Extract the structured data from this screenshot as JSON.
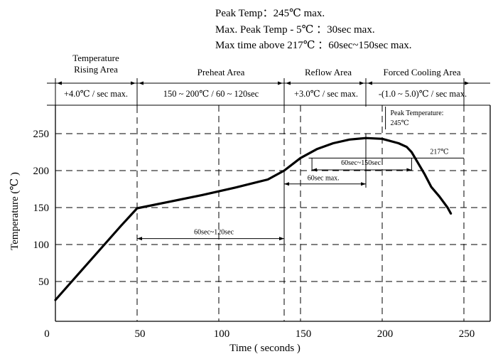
{
  "header": {
    "lines": [
      "Peak Temp：245℃ max.",
      "Max. Peak Temp - 5℃ ：30sec max.",
      "Max time above 217℃ ：60sec~150sec max."
    ]
  },
  "zones": {
    "names": [
      [
        "Temperature",
        "Rising Area"
      ],
      [
        "Preheat Area"
      ],
      [
        "Reflow Area"
      ],
      [
        "Forced Cooling Area"
      ]
    ],
    "rates": [
      "+4.0℃ / sec max.",
      "150 ~ 200℃ / 60 ~ 120sec",
      "+3.0℃ / sec max.",
      "-(1.0 ~ 5.0)℃ / sec max."
    ],
    "boundaries_x": [
      0,
      50,
      140,
      190,
      250
    ]
  },
  "chart_data": {
    "type": "line",
    "xlabel": "Time ( seconds )",
    "ylabel": "Temperature (℃ )",
    "xlim": [
      0,
      250
    ],
    "ylim": [
      0,
      280
    ],
    "x_ticks": [
      0,
      50,
      100,
      150,
      200,
      250
    ],
    "y_ticks": [
      50,
      100,
      150,
      200,
      250
    ],
    "grid": "dashed",
    "series": [
      {
        "x": [
          0,
          10,
          20,
          30,
          40,
          50,
          70,
          90,
          110,
          130,
          140,
          150,
          160,
          170,
          180,
          190,
          200,
          210,
          215,
          218,
          222,
          226,
          230,
          235,
          240,
          242
        ],
        "y": [
          25,
          50,
          75,
          100,
          125,
          149,
          158,
          167,
          177,
          188,
          200,
          217,
          229,
          237,
          242,
          244,
          243,
          237,
          232,
          225,
          210,
          195,
          178,
          165,
          150,
          142
        ]
      }
    ],
    "annotations": {
      "peak_label": [
        "Peak Temperature:",
        "245℃"
      ],
      "line_217": "217℃",
      "span_60_150": "60sec~150sec",
      "span_60max": "60sec max.",
      "span_60_120": "60sec~120sec"
    }
  }
}
